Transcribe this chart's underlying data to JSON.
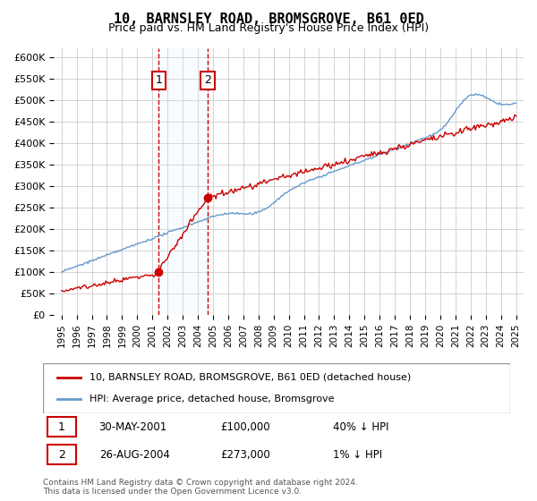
{
  "title": "10, BARNSLEY ROAD, BROMSGROVE, B61 0ED",
  "subtitle": "Price paid vs. HM Land Registry's House Price Index (HPI)",
  "red_label": "10, BARNSLEY ROAD, BROMSGROVE, B61 0ED (detached house)",
  "blue_label": "HPI: Average price, detached house, Bromsgrove",
  "footnote": "Contains HM Land Registry data © Crown copyright and database right 2024.\nThis data is licensed under the Open Government Licence v3.0.",
  "transactions": [
    {
      "date": "30-MAY-2001",
      "price": 100000,
      "pct": "40%",
      "dir": "↓",
      "label": "1",
      "x": 2001.41
    },
    {
      "date": "26-AUG-2004",
      "price": 273000,
      "pct": "1%",
      "dir": "↓",
      "label": "2",
      "x": 2004.65
    }
  ],
  "ylim": [
    0,
    620000
  ],
  "xlim": [
    1994.5,
    2025.5
  ],
  "yticks": [
    0,
    50000,
    100000,
    150000,
    200000,
    250000,
    300000,
    350000,
    400000,
    450000,
    500000,
    550000,
    600000
  ],
  "xticks": [
    1995,
    1996,
    1997,
    1998,
    1999,
    2000,
    2001,
    2002,
    2003,
    2004,
    2005,
    2006,
    2007,
    2008,
    2009,
    2010,
    2011,
    2012,
    2013,
    2014,
    2015,
    2016,
    2017,
    2018,
    2019,
    2020,
    2021,
    2022,
    2023,
    2024,
    2025
  ],
  "red_color": "#cc0000",
  "blue_color": "#6699cc",
  "shade_color": "#ddeeff",
  "transaction_box_color": "#cc0000",
  "background_color": "#ffffff"
}
